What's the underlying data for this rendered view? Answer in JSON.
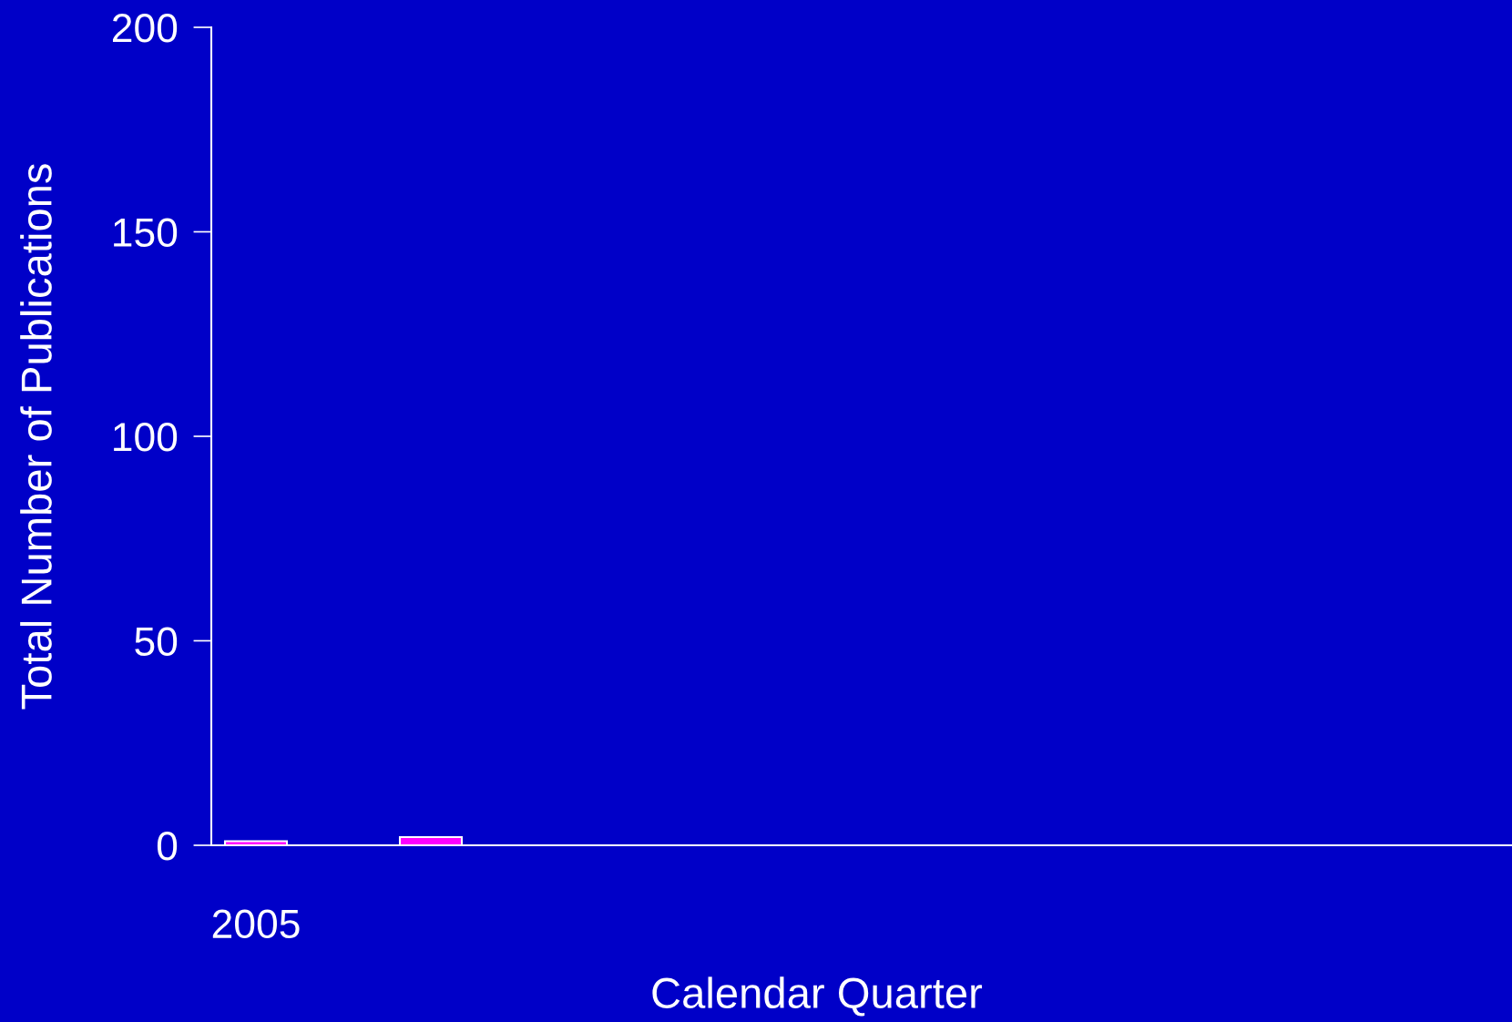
{
  "chart_data": {
    "type": "bar",
    "xlabel": "Calendar Quarter",
    "ylabel": "Total Number of Publications",
    "categories": [
      "2005",
      null,
      null,
      null,
      null,
      null,
      null,
      null
    ],
    "series": [
      {
        "color": "#ff00ff",
        "values": [
          1,
          2,
          null,
          null,
          null,
          null,
          null,
          null
        ]
      }
    ],
    "ylim": [
      0,
      200
    ],
    "yticks": [
      0,
      50,
      100,
      150,
      200
    ],
    "grid": false,
    "legend": false
  }
}
